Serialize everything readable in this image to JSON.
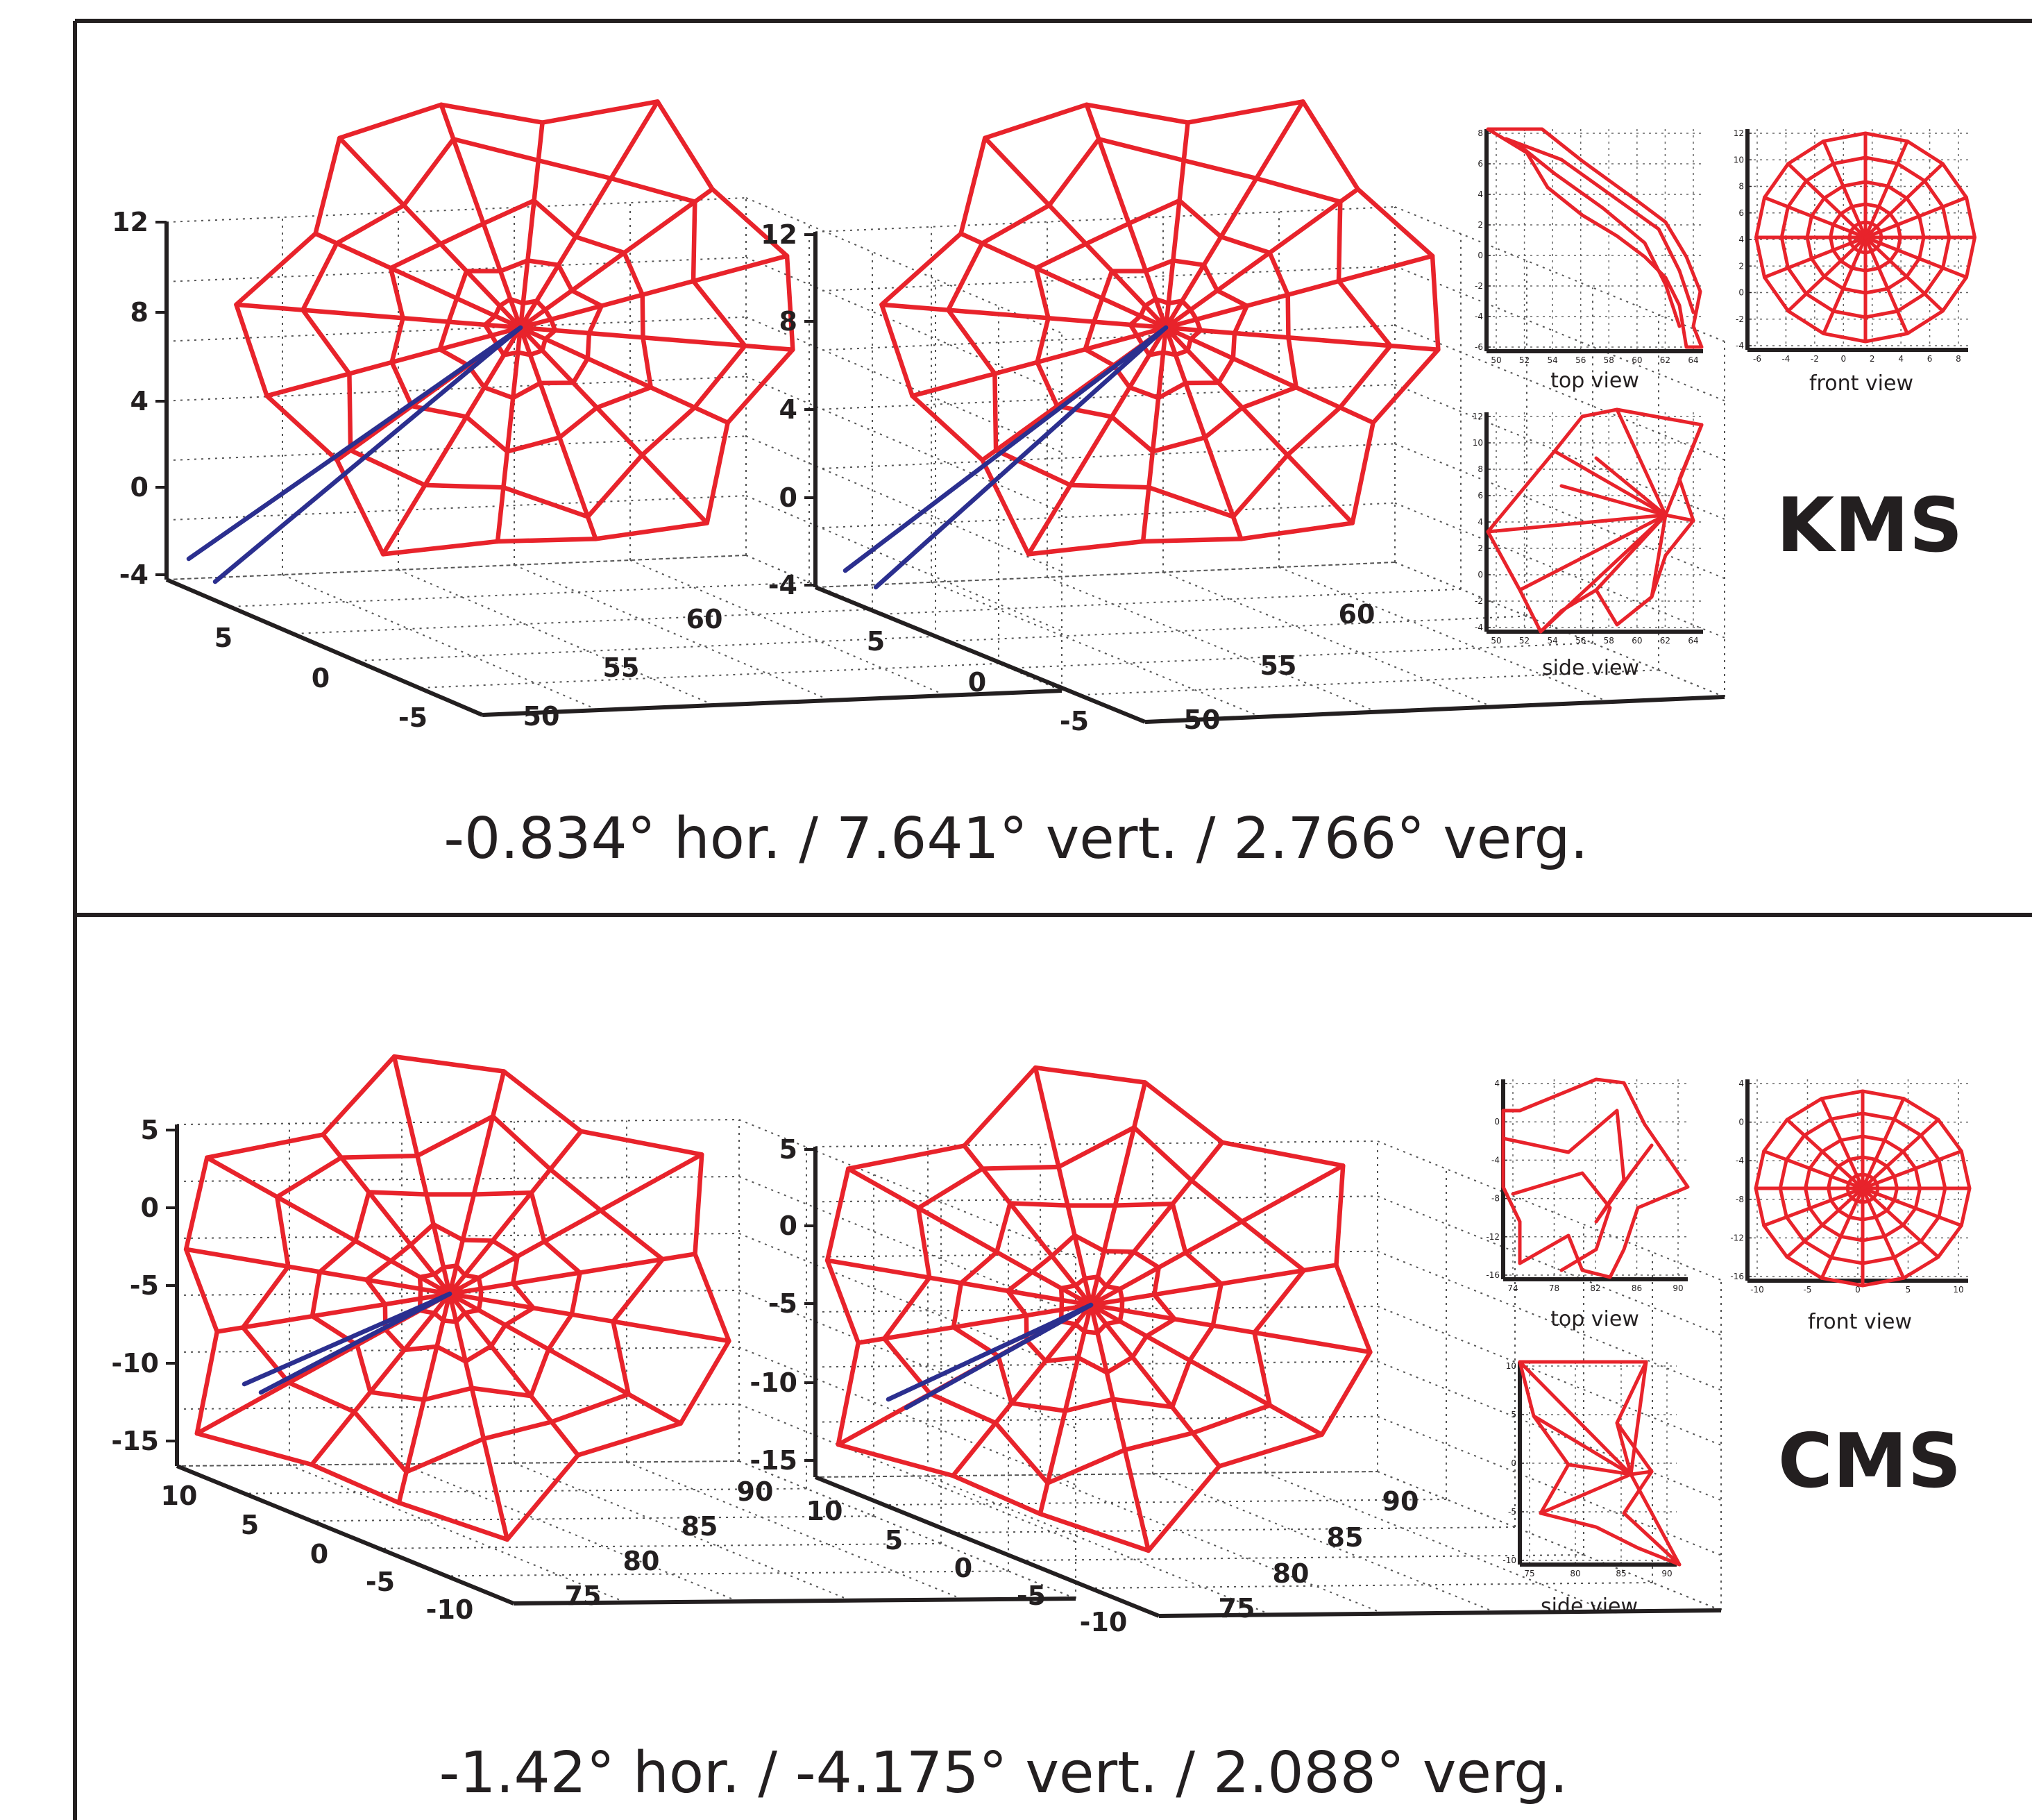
{
  "chart_data": [
    {
      "panel": "KMS",
      "subject_label": "KMS",
      "caption": "-0.834° hor. / 7.641° vert. / 2.766° verg.",
      "type": "3d-wireframe",
      "mesh_color": "#e8232b",
      "gaze_color": "#2b2f8f",
      "views": [
        {
          "name": "3d-left",
          "z_ticks": [
            "12",
            "8",
            "4",
            "0",
            "-4"
          ],
          "x_ticks": [
            "5",
            "0",
            "-5"
          ],
          "y_ticks": [
            "50",
            "55",
            "60"
          ]
        },
        {
          "name": "3d-right",
          "z_ticks": [
            "12",
            "8",
            "4",
            "0",
            "-4"
          ],
          "x_ticks": [
            "5",
            "0",
            "-5"
          ],
          "y_ticks": [
            "50",
            "55",
            "60"
          ]
        },
        {
          "name": "top view",
          "label": "top view",
          "y_ticks": [
            "8",
            "6",
            "4",
            "2",
            "0",
            "-2",
            "-4",
            "-6"
          ],
          "x_ticks": [
            "50",
            "52",
            "54",
            "56",
            "58",
            "60",
            "62",
            "64"
          ]
        },
        {
          "name": "front view",
          "label": "front view",
          "y_ticks": [
            "12",
            "10",
            "8",
            "6",
            "4",
            "2",
            "0",
            "-2",
            "-4"
          ],
          "x_ticks": [
            "-6",
            "-4",
            "-2",
            "0",
            "2",
            "4",
            "6",
            "8"
          ]
        },
        {
          "name": "side view",
          "label": "side view",
          "y_ticks": [
            "12",
            "10",
            "8",
            "6",
            "4",
            "2",
            "0",
            "-2",
            "-4"
          ],
          "x_ticks": [
            "50",
            "52",
            "54",
            "56",
            "58",
            "60",
            "62",
            "64"
          ]
        }
      ],
      "stats": {
        "horizontal_deg": -0.834,
        "vertical_deg": 7.641,
        "vergence_deg": 2.766
      }
    },
    {
      "panel": "CMS",
      "subject_label": "CMS",
      "caption": "-1.42° hor. / -4.175° vert. / 2.088° verg.",
      "type": "3d-wireframe",
      "mesh_color": "#e8232b",
      "gaze_color": "#2b2f8f",
      "views": [
        {
          "name": "3d-left",
          "z_ticks": [
            "5",
            "0",
            "-5",
            "-10",
            "-15"
          ],
          "x_ticks": [
            "10",
            "5",
            "0",
            "-5",
            "-10"
          ],
          "y_ticks": [
            "75",
            "80",
            "85",
            "90"
          ]
        },
        {
          "name": "3d-right",
          "z_ticks": [
            "5",
            "0",
            "-5",
            "-10",
            "-15"
          ],
          "x_ticks": [
            "10",
            "5",
            "0",
            "-5",
            "-10"
          ],
          "y_ticks": [
            "75",
            "80",
            "85",
            "90"
          ]
        },
        {
          "name": "top view",
          "label": "top view",
          "y_ticks": [
            "4",
            "0",
            "-4",
            "-8",
            "-12",
            "-16"
          ],
          "x_ticks": [
            "74",
            "78",
            "82",
            "86",
            "90"
          ]
        },
        {
          "name": "front view",
          "label": "front view",
          "y_ticks": [
            "4",
            "0",
            "-4",
            "-8",
            "-12",
            "-16"
          ],
          "x_ticks": [
            "-10",
            "-5",
            "0",
            "5",
            "10"
          ]
        },
        {
          "name": "side view",
          "label": "side view",
          "y_ticks": [
            "10",
            "5",
            "0",
            "-5",
            "-10"
          ],
          "x_ticks": [
            "75",
            "80",
            "85",
            "90"
          ]
        }
      ],
      "stats": {
        "horizontal_deg": -1.42,
        "vertical_deg": -4.175,
        "vergence_deg": 2.088
      }
    }
  ]
}
